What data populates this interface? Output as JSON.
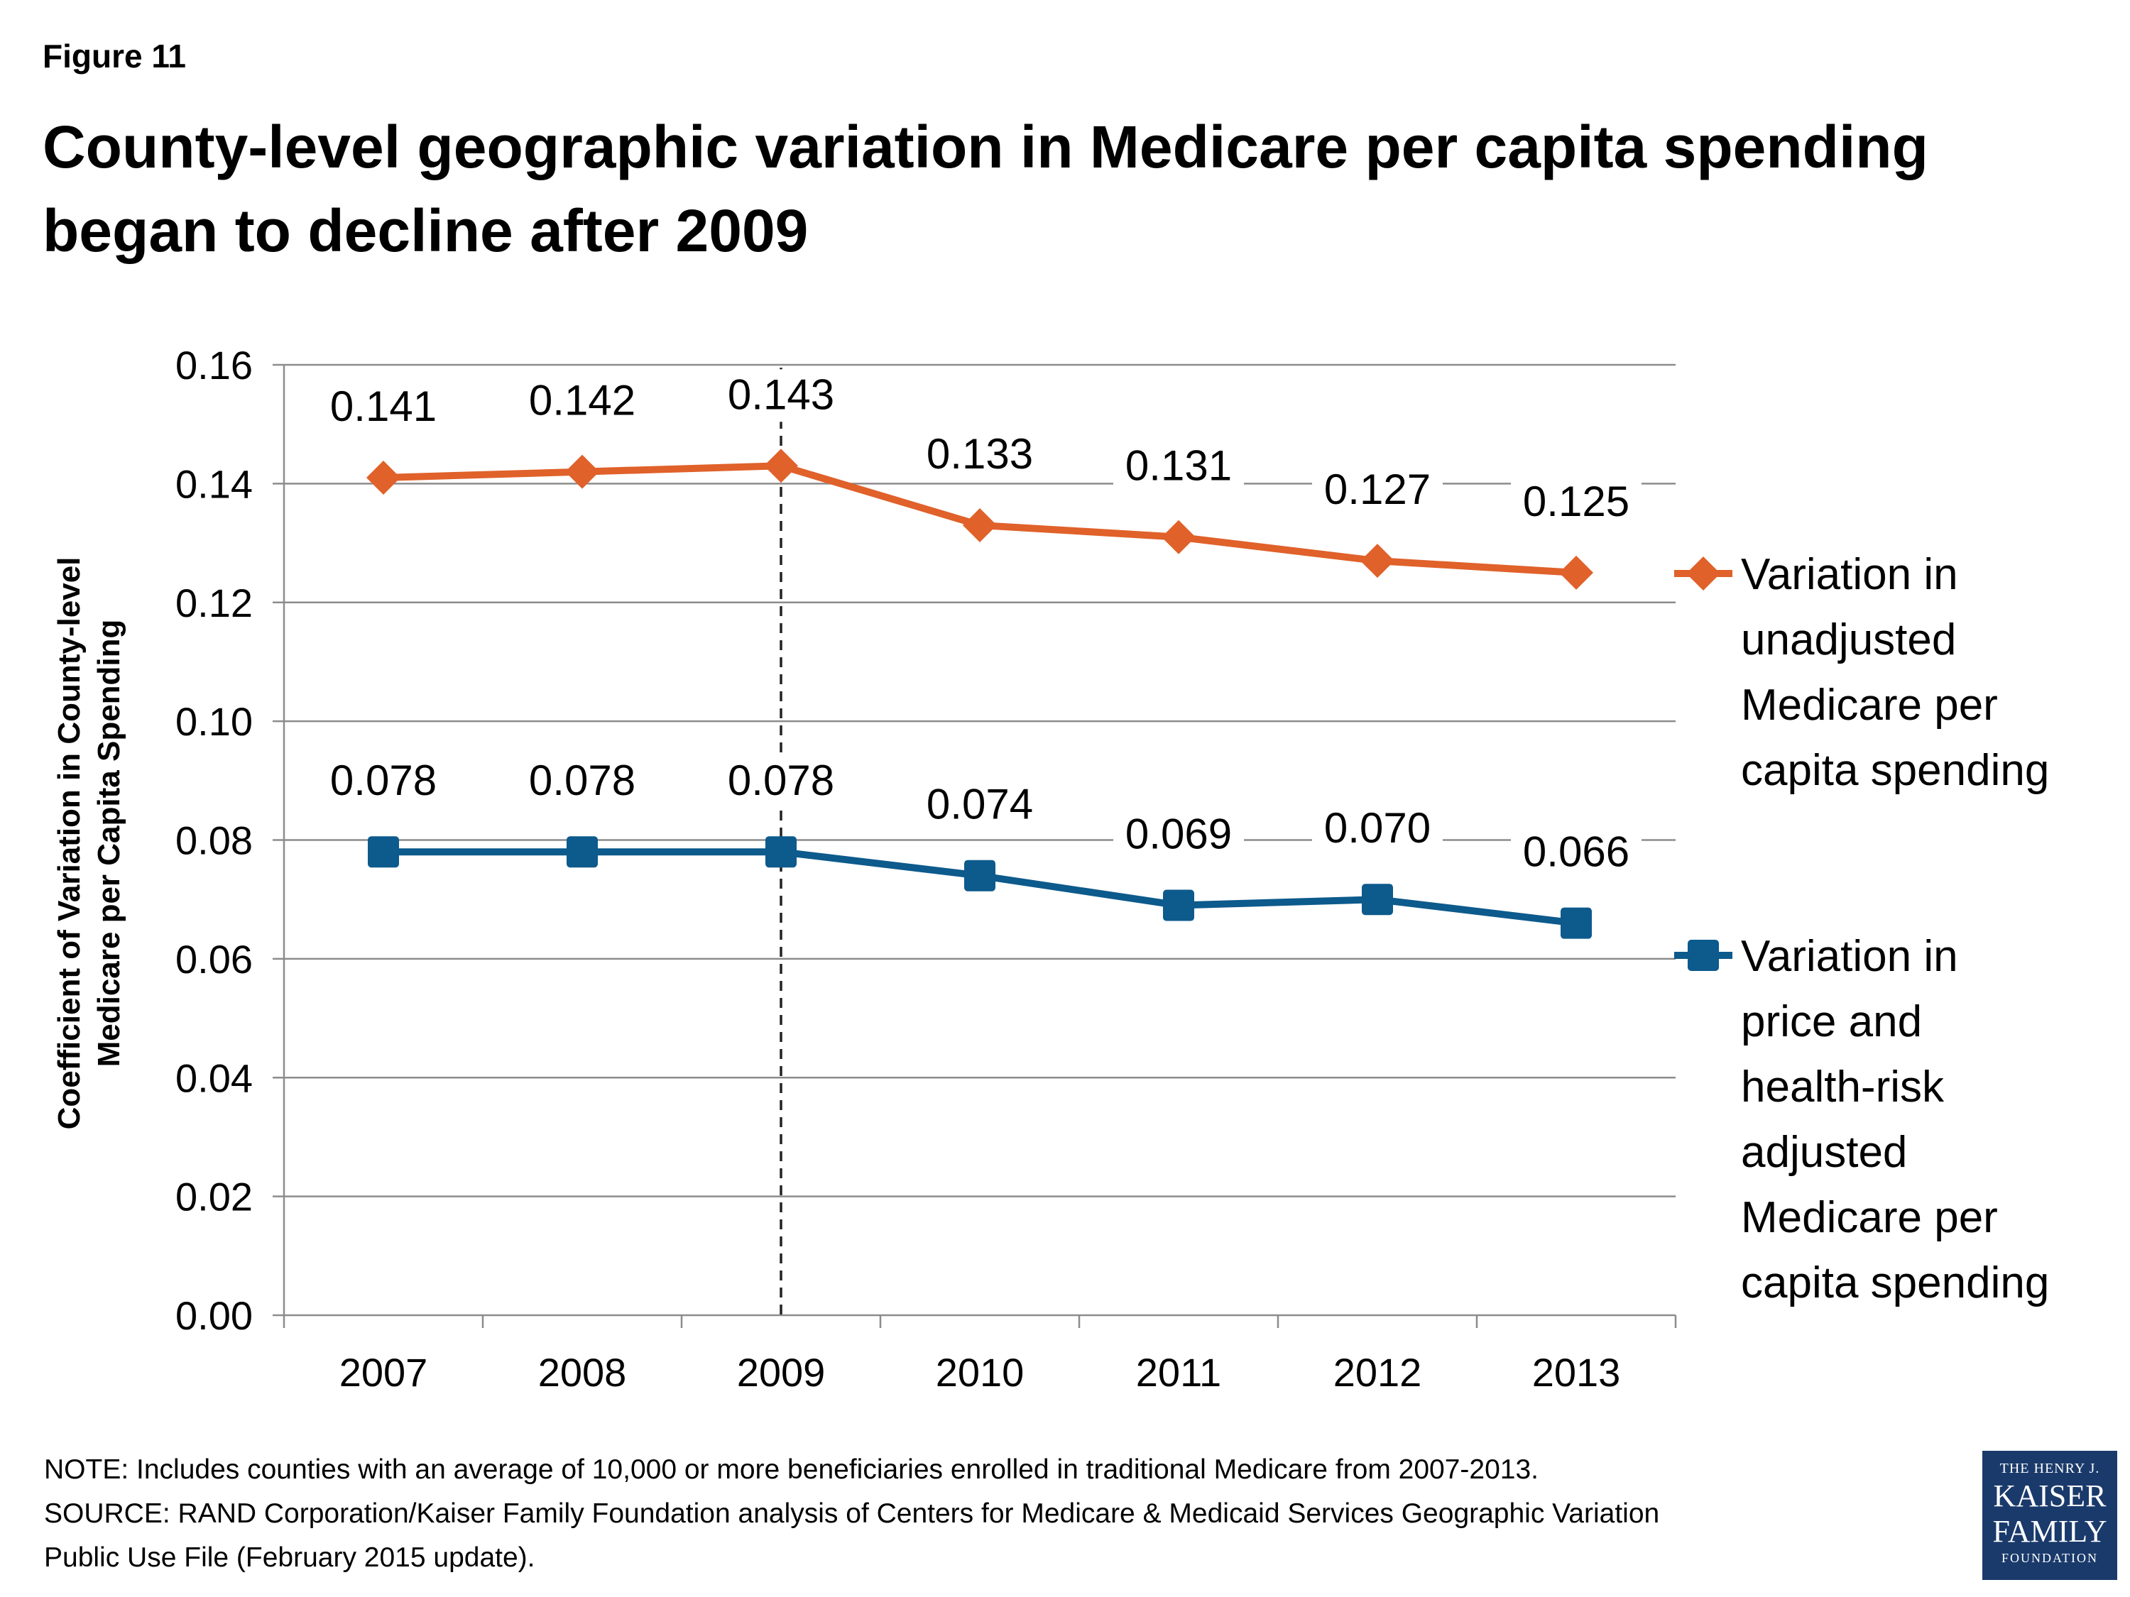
{
  "figure_label": "Figure 11",
  "title": "County-level geographic variation in Medicare per capita spending began to decline after 2009",
  "chart_data": {
    "type": "line",
    "categories": [
      "2007",
      "2008",
      "2009",
      "2010",
      "2011",
      "2012",
      "2013"
    ],
    "ylabel": "Coefficient of Variation in County-level Medicare per Capita Spending",
    "ylabel_lines": [
      "Coefficient of Variation in County-level",
      "Medicare per Capita Spending"
    ],
    "ylim": [
      0,
      0.16
    ],
    "yticks": [
      "0.00",
      "0.02",
      "0.04",
      "0.06",
      "0.08",
      "0.10",
      "0.12",
      "0.14",
      "0.16"
    ],
    "grid": true,
    "legend_position": "right",
    "reference_line": {
      "x": "2009",
      "style": "dashed"
    },
    "series": [
      {
        "name": "Variation in unadjusted Medicare per capita spending",
        "legend_lines": [
          "Variation in",
          "unadjusted",
          "Medicare per",
          "capita spending"
        ],
        "values": [
          0.141,
          0.142,
          0.143,
          0.133,
          0.131,
          0.127,
          0.125
        ],
        "labels": [
          "0.141",
          "0.142",
          "0.143",
          "0.133",
          "0.131",
          "0.127",
          "0.125"
        ],
        "color": "#e0612a",
        "marker": "diamond"
      },
      {
        "name": "Variation in price and health-risk adjusted Medicare per capita spending",
        "legend_lines": [
          "Variation in",
          "price and",
          "health-risk",
          "adjusted",
          "Medicare per",
          "capita spending"
        ],
        "values": [
          0.078,
          0.078,
          0.078,
          0.074,
          0.069,
          0.07,
          0.066
        ],
        "labels": [
          "0.078",
          "0.078",
          "0.078",
          "0.074",
          "0.069",
          "0.070",
          "0.066"
        ],
        "color": "#0d5a8c",
        "marker": "square"
      }
    ]
  },
  "footer": {
    "note": "NOTE: Includes counties with an average of 10,000 or more beneficiaries enrolled in traditional Medicare from 2007-2013.",
    "source_line1": "SOURCE: RAND Corporation/Kaiser Family Foundation analysis of Centers for Medicare & Medicaid Services Geographic Variation",
    "source_line2": "Public Use File (February 2015 update)."
  },
  "logo": {
    "line1": "THE HENRY J.",
    "line2": "KAISER",
    "line3": "FAMILY",
    "line4": "FOUNDATION"
  }
}
